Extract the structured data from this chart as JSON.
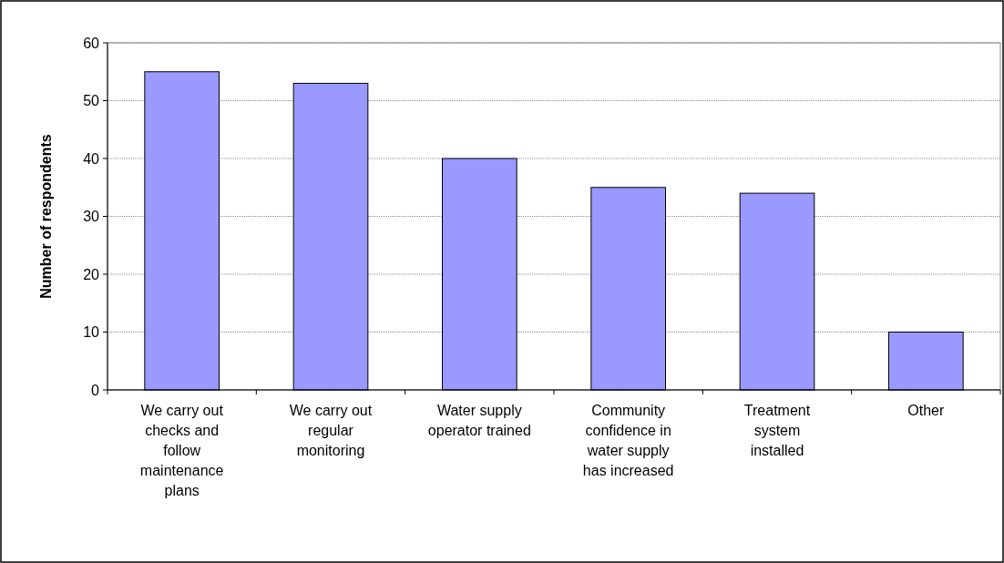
{
  "chart_data": {
    "type": "bar",
    "ylabel": "Number of respondents",
    "categories": [
      "We carry out checks and follow maintenance plans",
      "We carry out regular monitoring",
      "Water supply operator trained",
      "Community confidence in water supply has increased",
      "Treatment system installed",
      "Other"
    ],
    "values": [
      55,
      53,
      40,
      35,
      34,
      10
    ],
    "color": "#9999ff",
    "ylim": [
      0,
      60
    ],
    "yticks": [
      0,
      10,
      20,
      30,
      40,
      50,
      60
    ],
    "grid": "y"
  }
}
